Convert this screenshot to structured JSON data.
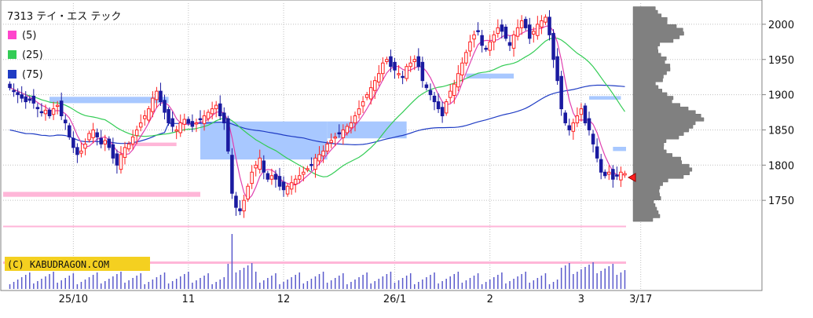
{
  "chart": {
    "title": "7313 テイ・エス テック",
    "copyright": "(C) KABUDRAGON.COM",
    "colors": {
      "up": "#ff2020",
      "down": "#1a1aa0",
      "ma5": "#e040b0",
      "ma25": "#33cc55",
      "ma75": "#1f3cc4",
      "zone": "#a8c8ff",
      "zone_pink": "#ffb6d8",
      "volume": "#5a5acc",
      "profile": "#808080"
    }
  },
  "legend": [
    {
      "label": "(5)",
      "color": "#ff44cc"
    },
    {
      "label": "(25)",
      "color": "#33cc55"
    },
    {
      "label": "(75)",
      "color": "#1f3cc4"
    }
  ],
  "chart_data": {
    "type": "candlestick",
    "title": "7313 テイ・エス テック",
    "ylim": [
      1700,
      2030
    ],
    "y_ticks": [
      1750,
      1800,
      1850,
      1900,
      1950,
      2000
    ],
    "x_tick_labels": [
      {
        "label": "25/10",
        "index": 16
      },
      {
        "label": "11",
        "index": 45
      },
      {
        "label": "12",
        "index": 69
      },
      {
        "label": "26/1",
        "index": 97
      },
      {
        "label": "2",
        "index": 121
      },
      {
        "label": "3",
        "index": 144
      },
      {
        "label": "3/17",
        "index": 159
      }
    ],
    "moving_averages": [
      "(5)",
      "(25)",
      "(75)"
    ],
    "series": [
      {
        "name": "close",
        "values": [
          1910,
          1905,
          1900,
          1895,
          1890,
          1892,
          1888,
          1880,
          1875,
          1878,
          1870,
          1880,
          1885,
          1870,
          1860,
          1840,
          1825,
          1815,
          1820,
          1830,
          1845,
          1850,
          1840,
          1830,
          1835,
          1825,
          1810,
          1800,
          1815,
          1825,
          1830,
          1840,
          1850,
          1860,
          1870,
          1880,
          1895,
          1905,
          1890,
          1875,
          1860,
          1855,
          1850,
          1860,
          1865,
          1860,
          1855,
          1860,
          1865,
          1870,
          1875,
          1880,
          1885,
          1870,
          1860,
          1820,
          1760,
          1740,
          1735,
          1750,
          1770,
          1790,
          1800,
          1810,
          1790,
          1780,
          1785,
          1780,
          1770,
          1765,
          1770,
          1775,
          1780,
          1785,
          1790,
          1795,
          1800,
          1810,
          1815,
          1820,
          1830,
          1835,
          1840,
          1845,
          1850,
          1855,
          1860,
          1870,
          1880,
          1890,
          1900,
          1910,
          1920,
          1930,
          1945,
          1950,
          1940,
          1935,
          1930,
          1925,
          1940,
          1945,
          1950,
          1940,
          1920,
          1910,
          1900,
          1890,
          1880,
          1870,
          1890,
          1905,
          1915,
          1930,
          1945,
          1960,
          1975,
          1985,
          1990,
          1970,
          1965,
          1975,
          1985,
          1995,
          1990,
          1980,
          1970,
          1985,
          1995,
          2005,
          1995,
          1980,
          1990,
          2000,
          2005,
          2010,
          1985,
          1950,
          1920,
          1880,
          1860,
          1850,
          1860,
          1870,
          1880,
          1860,
          1850,
          1830,
          1810,
          1790,
          1785,
          1790,
          1780,
          1785,
          1790,
          1788
        ]
      }
    ],
    "volume_profile_range": [
      1720,
      2025
    ]
  }
}
